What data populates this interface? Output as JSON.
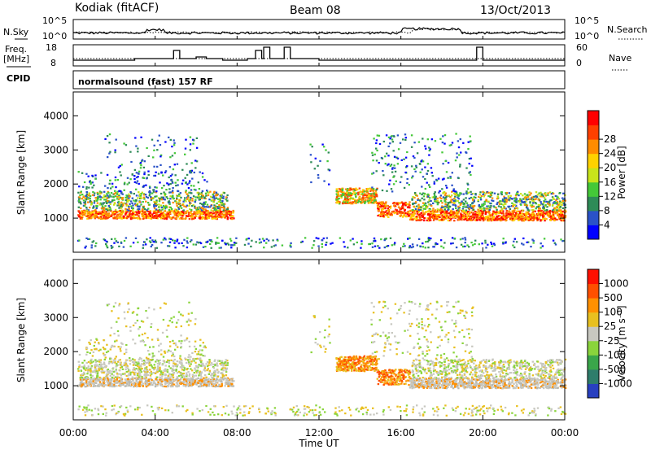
{
  "header": {
    "station": "Kodiak (fitACF)",
    "beam": "Beam 08",
    "date": "13/Oct/2013"
  },
  "strip": {
    "nsky_label": "N.Sky",
    "nsky_ticks": [
      "10^5",
      "10^0"
    ],
    "nsearch_label": "N.Search",
    "freq_label": "Freq.",
    "freq_unit": "[MHz]",
    "freq_ticks": [
      "18",
      "8"
    ],
    "nave_label": "Nave",
    "nave_ticks": [
      "60",
      "0"
    ],
    "cpid_label": "CPID",
    "cpid_value": "normalsound (fast) 157 RF"
  },
  "chart_data": [
    {
      "type": "heatmap",
      "name": "power",
      "ylabel": "Slant Range [km]",
      "xlabel": "",
      "yticks": [
        "1000",
        "2000",
        "3000",
        "4000"
      ],
      "colorbar_label": "Power [dB]",
      "colorbar_ticks": [
        "4",
        "8",
        "12",
        "16",
        "20",
        "24",
        "28"
      ],
      "colorbar_colors": [
        "#0000ff",
        "#2a52c8",
        "#2e8b57",
        "#44c838",
        "#c8e41a",
        "#ffd200",
        "#ff8c00",
        "#ff4000",
        "#ff0000"
      ],
      "ylim": [
        0,
        4700
      ],
      "xlim": [
        0,
        24
      ]
    },
    {
      "type": "heatmap",
      "name": "velocity",
      "ylabel": "Slant Range [km]",
      "xlabel": "Time UT",
      "yticks": [
        "1000",
        "2000",
        "3000",
        "4000"
      ],
      "xticks": [
        "00:00",
        "04:00",
        "08:00",
        "12:00",
        "16:00",
        "20:00",
        "00:00"
      ],
      "colorbar_label": "Velocity [m s⁻¹]",
      "colorbar_ticks": [
        "1000",
        "500",
        "100",
        "25",
        "-25",
        "-100",
        "-500",
        "-1000"
      ],
      "colorbar_colors": [
        "#2840c0",
        "#2e7d6b",
        "#3aa64a",
        "#8ad43c",
        "#c8c8c0",
        "#e8c020",
        "#ff9000",
        "#ff5000",
        "#ff1000"
      ],
      "ylim": [
        0,
        4700
      ],
      "xlim": [
        0,
        24
      ]
    }
  ]
}
